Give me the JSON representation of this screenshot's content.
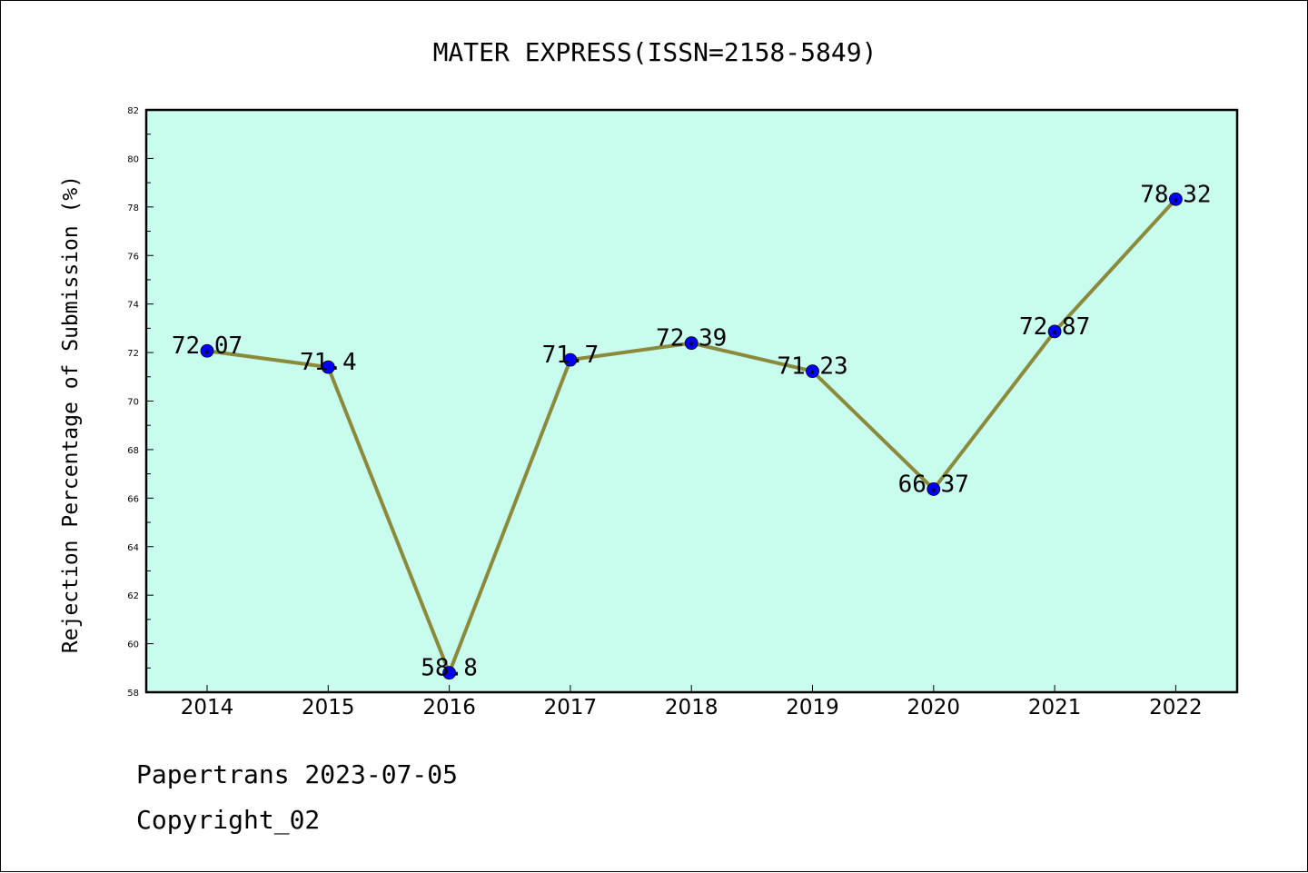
{
  "chart_data": {
    "type": "line",
    "title": "MATER EXPRESS(ISSN=2158-5849)",
    "ylabel": "Rejection Percentage of Submission (%)",
    "xlabel": "",
    "categories": [
      "2014",
      "2015",
      "2016",
      "2017",
      "2018",
      "2019",
      "2020",
      "2021",
      "2022"
    ],
    "series": [
      {
        "values": [
          72.07,
          71.4,
          58.8,
          71.7,
          72.39,
          71.23,
          66.37,
          72.87,
          78.32
        ],
        "data_labels": [
          "72.07",
          "71.4",
          "58.8",
          "71.7",
          "72.39",
          "71.23",
          "66.37",
          "72.87",
          "78.32"
        ]
      }
    ],
    "ylim": [
      58,
      82
    ],
    "yticks": [
      58,
      60,
      62,
      64,
      66,
      68,
      70,
      72,
      74,
      76,
      78,
      80,
      82
    ],
    "grid": false,
    "colors": {
      "plot_background": "#c8fcee",
      "line": "#8b8a3a",
      "marker": "#0000ff"
    }
  },
  "footer": {
    "line1": "Papertrans 2023-07-05",
    "line2": "Copyright_02"
  }
}
